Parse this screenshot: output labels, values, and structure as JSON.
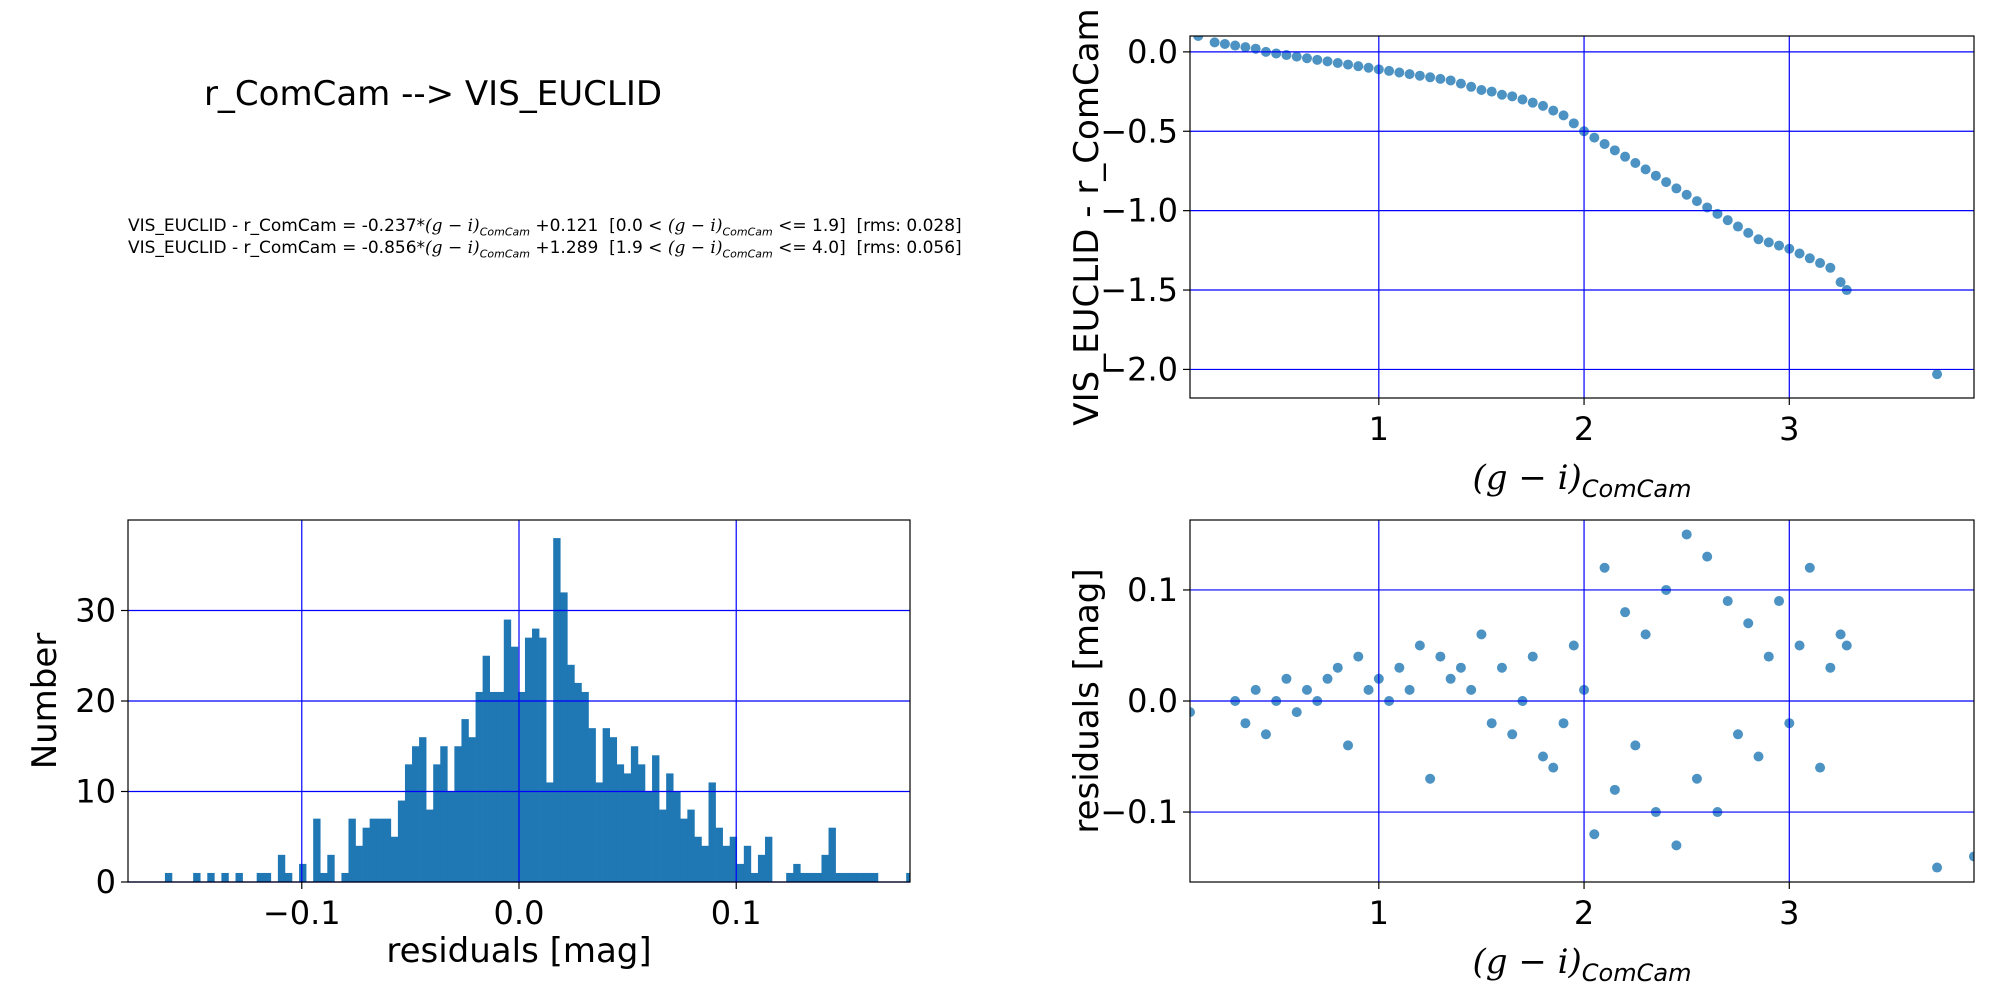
{
  "title": "r_ComCam --> VIS_EUCLID",
  "equations": [
    {
      "lhs": "VIS_EUCLID - r_ComCam = ",
      "slope": "-0.237",
      "intercept": "+0.121",
      "range_lo": "[0.0 < ",
      "range_hi": " <= 1.9]",
      "rms": "[rms: 0.028]"
    },
    {
      "lhs": "VIS_EUCLID - r_ComCam = ",
      "slope": "-0.856",
      "intercept": "+1.289",
      "range_lo": "[1.9 < ",
      "range_hi": " <= 4.0]",
      "rms": "[rms: 0.056]"
    }
  ],
  "color_symbol": "(g − i)",
  "color_subscript": "ComCam",
  "colors": {
    "marker": "#1f77b4",
    "grid": "#0000ff"
  },
  "chart_data": [
    {
      "type": "scatter",
      "xlabel_symbol": "(g − i)",
      "xlabel_sub": "ComCam",
      "ylabel": "VIS_EUCLID - r_ComCam",
      "xlim": [
        0.08,
        3.9
      ],
      "ylim": [
        -2.18,
        0.1
      ],
      "xticks": [
        1,
        2,
        3
      ],
      "xtick_labels": [
        "1",
        "2",
        "3"
      ],
      "yticks": [
        0.0,
        -0.5,
        -1.0,
        -1.5,
        -2.0
      ],
      "ytick_labels": [
        "0.0",
        "−0.5",
        "−1.0",
        "−1.5",
        "−2.0"
      ],
      "grid": true,
      "x": [
        0.12,
        0.2,
        0.25,
        0.3,
        0.35,
        0.4,
        0.45,
        0.5,
        0.55,
        0.6,
        0.65,
        0.7,
        0.75,
        0.8,
        0.85,
        0.9,
        0.95,
        1.0,
        1.05,
        1.1,
        1.15,
        1.2,
        1.25,
        1.3,
        1.35,
        1.4,
        1.45,
        1.5,
        1.55,
        1.6,
        1.65,
        1.7,
        1.75,
        1.8,
        1.85,
        1.9,
        1.95,
        2.0,
        2.05,
        2.1,
        2.15,
        2.2,
        2.25,
        2.3,
        2.35,
        2.4,
        2.45,
        2.5,
        2.55,
        2.6,
        2.65,
        2.7,
        2.75,
        2.8,
        2.85,
        2.9,
        2.95,
        3.0,
        3.05,
        3.1,
        3.15,
        3.2,
        3.25,
        3.28,
        3.72
      ],
      "y": [
        0.1,
        0.06,
        0.05,
        0.04,
        0.03,
        0.02,
        0.0,
        -0.01,
        -0.02,
        -0.03,
        -0.04,
        -0.05,
        -0.06,
        -0.07,
        -0.08,
        -0.09,
        -0.1,
        -0.11,
        -0.12,
        -0.13,
        -0.14,
        -0.15,
        -0.16,
        -0.17,
        -0.18,
        -0.2,
        -0.22,
        -0.24,
        -0.25,
        -0.27,
        -0.28,
        -0.3,
        -0.32,
        -0.34,
        -0.37,
        -0.4,
        -0.45,
        -0.5,
        -0.54,
        -0.58,
        -0.62,
        -0.66,
        -0.7,
        -0.74,
        -0.78,
        -0.82,
        -0.86,
        -0.9,
        -0.94,
        -0.98,
        -1.02,
        -1.06,
        -1.1,
        -1.14,
        -1.18,
        -1.2,
        -1.22,
        -1.24,
        -1.27,
        -1.3,
        -1.33,
        -1.36,
        -1.45,
        -1.5,
        -2.03
      ]
    },
    {
      "type": "bar",
      "xlabel": "residuals [mag]",
      "ylabel": "Number",
      "xlim": [
        -0.18,
        0.18
      ],
      "ylim": [
        0,
        40
      ],
      "xticks": [
        -0.1,
        0.0,
        0.1
      ],
      "xtick_labels": [
        "−0.1",
        "0.0",
        "0.1"
      ],
      "yticks": [
        0,
        10,
        20,
        30
      ],
      "ytick_labels": [
        "0",
        "10",
        "20",
        "30"
      ],
      "grid": true,
      "bin_start": -0.163,
      "bin_width": 0.00325,
      "values": [
        1,
        0,
        0,
        0,
        1,
        0,
        1,
        0,
        1,
        0,
        1,
        0,
        0,
        1,
        1,
        0,
        3,
        1,
        0,
        2,
        0,
        7,
        1,
        3,
        0,
        1,
        7,
        4,
        6,
        7,
        7,
        7,
        5,
        9,
        13,
        15,
        16,
        8,
        13,
        15,
        10,
        15,
        18,
        16,
        21,
        25,
        21,
        21,
        29,
        26,
        21,
        27,
        28,
        27,
        11,
        38,
        32,
        24,
        22,
        21,
        17,
        11,
        17,
        16,
        13,
        12,
        15,
        13,
        10,
        14,
        8,
        12,
        10,
        7,
        8,
        5,
        4,
        11,
        6,
        4,
        5,
        2,
        4,
        1,
        3,
        5,
        0,
        0,
        1,
        2,
        1,
        1,
        1,
        3,
        6,
        1,
        1,
        1,
        1,
        1,
        1,
        0,
        0,
        0,
        0,
        1,
        1,
        1,
        1,
        1,
        1,
        0,
        3
      ]
    },
    {
      "type": "scatter",
      "xlabel_symbol": "(g − i)",
      "xlabel_sub": "ComCam",
      "ylabel": "residuals [mag]",
      "xlim": [
        0.08,
        3.9
      ],
      "ylim": [
        -0.163,
        0.163
      ],
      "xticks": [
        1,
        2,
        3
      ],
      "xtick_labels": [
        "1",
        "2",
        "3"
      ],
      "yticks": [
        0.1,
        0.0,
        -0.1
      ],
      "ytick_labels": [
        "0.1",
        "0.0",
        "−0.1"
      ],
      "grid": true,
      "x": [
        0.08,
        0.3,
        0.35,
        0.4,
        0.45,
        0.5,
        0.55,
        0.6,
        0.65,
        0.7,
        0.75,
        0.8,
        0.85,
        0.9,
        0.95,
        1.0,
        1.05,
        1.1,
        1.15,
        1.2,
        1.25,
        1.3,
        1.35,
        1.4,
        1.45,
        1.5,
        1.55,
        1.6,
        1.65,
        1.7,
        1.75,
        1.8,
        1.85,
        1.9,
        1.95,
        2.0,
        2.05,
        2.1,
        2.15,
        2.2,
        2.25,
        2.3,
        2.35,
        2.4,
        2.45,
        2.5,
        2.55,
        2.6,
        2.65,
        2.7,
        2.75,
        2.8,
        2.85,
        2.9,
        2.95,
        3.0,
        3.05,
        3.1,
        3.15,
        3.2,
        3.25,
        3.28,
        3.72,
        3.9
      ],
      "y": [
        -0.01,
        0.0,
        -0.02,
        0.01,
        -0.03,
        0.0,
        0.02,
        -0.01,
        0.01,
        0.0,
        0.02,
        0.03,
        -0.04,
        0.04,
        0.01,
        0.02,
        0.0,
        0.03,
        0.01,
        0.05,
        -0.07,
        0.04,
        0.02,
        0.03,
        0.01,
        0.06,
        -0.02,
        0.03,
        -0.03,
        0.0,
        0.04,
        -0.05,
        -0.06,
        -0.02,
        0.05,
        0.01,
        -0.12,
        0.12,
        -0.08,
        0.08,
        -0.04,
        0.06,
        -0.1,
        0.1,
        -0.13,
        0.15,
        -0.07,
        0.13,
        -0.1,
        0.09,
        -0.03,
        0.07,
        -0.05,
        0.04,
        0.09,
        -0.02,
        0.05,
        0.12,
        -0.06,
        0.03,
        0.06,
        0.05,
        -0.15,
        -0.14
      ]
    }
  ]
}
